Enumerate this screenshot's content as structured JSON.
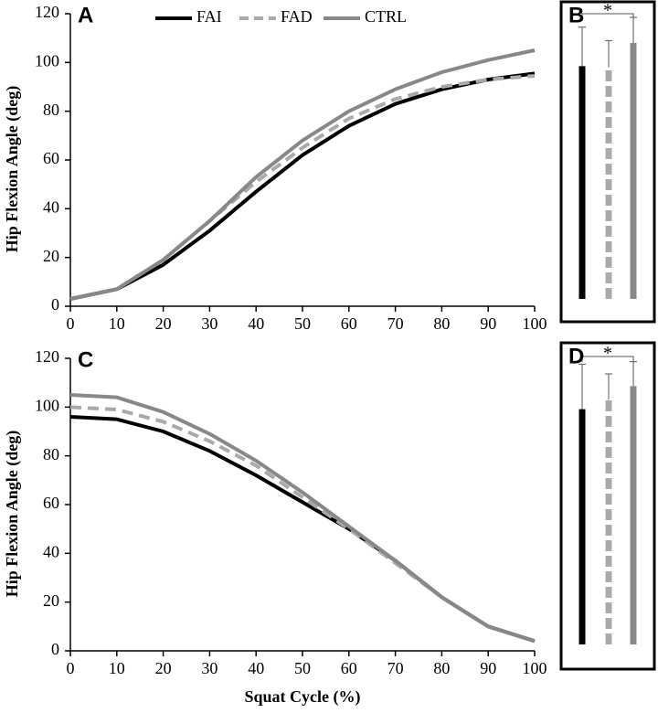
{
  "chart_data": [
    {
      "type": "line",
      "panel_label": "A",
      "ylabel": "Hip Flexion Angle (deg)",
      "x": [
        0,
        10,
        20,
        30,
        40,
        50,
        60,
        70,
        80,
        90,
        100
      ],
      "series": [
        {
          "name": "FAI",
          "color": "#000000",
          "dash": false,
          "values": [
            3,
            7,
            17,
            31,
            47,
            62,
            74,
            83,
            89,
            93,
            95.5
          ]
        },
        {
          "name": "FAD",
          "color": "#aaaaaa",
          "dash": true,
          "values": [
            3,
            7,
            19,
            35,
            51,
            65,
            77,
            85,
            90,
            93,
            94.5
          ]
        },
        {
          "name": "CTRL",
          "color": "#888888",
          "dash": false,
          "values": [
            3,
            7,
            19,
            35,
            53,
            68,
            80,
            89,
            96,
            101,
            105
          ]
        }
      ],
      "xlim": [
        0,
        100
      ],
      "ylim": [
        0,
        120
      ],
      "xticks": [
        0,
        10,
        20,
        30,
        40,
        50,
        60,
        70,
        80,
        90,
        100
      ],
      "yticks": [
        0,
        20,
        40,
        60,
        80,
        100,
        120
      ],
      "legend": "top"
    },
    {
      "type": "bar",
      "panel_label": "B",
      "annotation": "*",
      "values": [
        95.5,
        95,
        105
      ],
      "errors": [
        16,
        11,
        10.5
      ],
      "colors": [
        "#000000",
        "#aaaaaa",
        "#888888"
      ],
      "dashes": [
        false,
        true,
        false
      ]
    },
    {
      "type": "line",
      "panel_label": "C",
      "ylabel": "Hip Flexion Angle (deg)",
      "xlabel": "Squat Cycle (%)",
      "x": [
        0,
        10,
        20,
        30,
        40,
        50,
        60,
        70,
        80,
        90,
        100
      ],
      "series": [
        {
          "color": "#000000",
          "dash": false,
          "values": [
            96,
            95,
            90,
            82,
            72,
            61,
            50,
            37,
            22,
            10,
            4
          ]
        },
        {
          "color": "#aaaaaa",
          "dash": true,
          "values": [
            100,
            99,
            94,
            86,
            76,
            63,
            50,
            36,
            22,
            10,
            4
          ]
        },
        {
          "color": "#888888",
          "dash": false,
          "values": [
            105,
            104,
            98,
            89,
            78,
            65,
            51,
            37,
            22,
            10,
            4
          ]
        }
      ],
      "xlim": [
        0,
        100
      ],
      "ylim": [
        0,
        120
      ],
      "xticks": [
        0,
        10,
        20,
        30,
        40,
        50,
        60,
        70,
        80,
        90,
        100
      ],
      "yticks": [
        0,
        20,
        40,
        60,
        80,
        100,
        120
      ]
    },
    {
      "type": "bar",
      "panel_label": "D",
      "annotation": "*",
      "values": [
        96.5,
        100.5,
        106
      ],
      "errors": [
        18.5,
        10.5,
        10
      ],
      "colors": [
        "#000000",
        "#aaaaaa",
        "#888888"
      ],
      "dashes": [
        false,
        true,
        false
      ]
    }
  ]
}
